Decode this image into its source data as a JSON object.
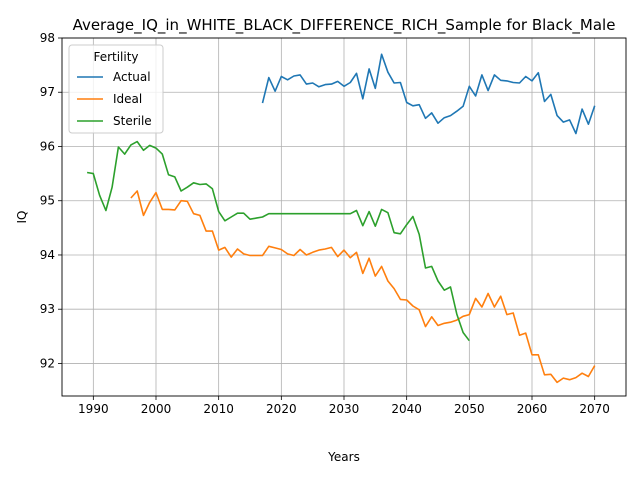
{
  "chart_data": {
    "type": "line",
    "title": "Average_IQ_in_WHITE_BLACK_DIFFERENCE_RICH_Sample for Black_Male",
    "xlabel": "Years",
    "ylabel": "IQ",
    "xlim": [
      1985,
      2075
    ],
    "ylim": [
      91.4,
      98.0
    ],
    "xticks": [
      1990,
      2000,
      2010,
      2020,
      2030,
      2040,
      2050,
      2060,
      2070
    ],
    "yticks": [
      92,
      93,
      94,
      95,
      96,
      97,
      98
    ],
    "grid": true,
    "legend": {
      "title": "Fertility",
      "placement": "upper-left"
    },
    "series": [
      {
        "name": "Actual",
        "color": "#1f77b4",
        "x": [
          2017,
          2018,
          2019,
          2020,
          2021,
          2022,
          2023,
          2024,
          2025,
          2026,
          2027,
          2028,
          2029,
          2030,
          2031,
          2032,
          2033,
          2034,
          2035,
          2036,
          2037,
          2038,
          2039,
          2040,
          2041,
          2042,
          2043,
          2044,
          2045,
          2046,
          2047,
          2048,
          2049,
          2050,
          2051,
          2052,
          2053,
          2054,
          2055,
          2056,
          2057,
          2058,
          2059,
          2060,
          2061,
          2062,
          2063,
          2064,
          2065,
          2066,
          2067,
          2068,
          2069,
          2070
        ],
        "y": [
          96.8,
          97.27,
          97.02,
          97.29,
          97.23,
          97.3,
          97.32,
          97.15,
          97.17,
          97.1,
          97.14,
          97.15,
          97.2,
          97.11,
          97.18,
          97.35,
          96.88,
          97.43,
          97.07,
          97.7,
          97.37,
          97.17,
          97.18,
          96.81,
          96.75,
          96.77,
          96.52,
          96.62,
          96.43,
          96.53,
          96.57,
          96.65,
          96.74,
          97.11,
          96.93,
          97.32,
          97.03,
          97.32,
          97.22,
          97.21,
          97.18,
          97.17,
          97.29,
          97.21,
          97.36,
          96.83,
          96.96,
          96.57,
          96.45,
          96.49,
          96.24,
          96.69,
          96.41,
          96.75
        ]
      },
      {
        "name": "Ideal",
        "color": "#ff7f0e",
        "x": [
          1996,
          1997,
          1998,
          1999,
          2000,
          2001,
          2002,
          2003,
          2004,
          2005,
          2006,
          2007,
          2008,
          2009,
          2010,
          2011,
          2012,
          2013,
          2014,
          2015,
          2016,
          2017,
          2018,
          2019,
          2020,
          2021,
          2022,
          2023,
          2024,
          2025,
          2026,
          2027,
          2028,
          2029,
          2030,
          2031,
          2032,
          2033,
          2034,
          2035,
          2036,
          2037,
          2038,
          2039,
          2040,
          2041,
          2042,
          2043,
          2044,
          2045,
          2046,
          2047,
          2048,
          2049,
          2050,
          2051,
          2052,
          2053,
          2054,
          2055,
          2056,
          2057,
          2058,
          2059,
          2060,
          2061,
          2062,
          2063,
          2064,
          2065,
          2066,
          2067,
          2068,
          2069,
          2070
        ],
        "y": [
          95.05,
          95.18,
          94.73,
          94.97,
          95.15,
          94.84,
          94.84,
          94.83,
          95.0,
          94.99,
          94.76,
          94.73,
          94.44,
          94.44,
          94.09,
          94.14,
          93.96,
          94.11,
          94.02,
          93.99,
          93.99,
          93.99,
          94.16,
          94.13,
          94.1,
          94.02,
          93.99,
          94.1,
          94.0,
          94.05,
          94.09,
          94.11,
          94.14,
          93.97,
          94.09,
          93.95,
          94.05,
          93.66,
          93.94,
          93.61,
          93.79,
          93.52,
          93.38,
          93.18,
          93.17,
          93.06,
          92.99,
          92.68,
          92.86,
          92.7,
          92.74,
          92.76,
          92.8,
          92.87,
          92.9,
          93.2,
          93.04,
          93.29,
          93.04,
          93.24,
          92.9,
          92.93,
          92.52,
          92.56,
          92.16,
          92.16,
          91.79,
          91.8,
          91.65,
          91.73,
          91.7,
          91.74,
          91.82,
          91.76,
          91.96
        ]
      },
      {
        "name": "Sterile",
        "color": "#2ca02c",
        "x": [
          1989,
          1990,
          1991,
          1992,
          1993,
          1994,
          1995,
          1996,
          1997,
          1998,
          1999,
          2000,
          2001,
          2002,
          2003,
          2004,
          2005,
          2006,
          2007,
          2008,
          2009,
          2010,
          2011,
          2012,
          2013,
          2014,
          2015,
          2016,
          2017,
          2018,
          2019,
          2020,
          2021,
          2022,
          2023,
          2024,
          2025,
          2026,
          2027,
          2028,
          2029,
          2030,
          2031,
          2032,
          2033,
          2034,
          2035,
          2036,
          2037,
          2038,
          2039,
          2040,
          2041,
          2042,
          2043,
          2044,
          2045,
          2046,
          2047,
          2048,
          2049,
          2050
        ],
        "y": [
          95.52,
          95.5,
          95.1,
          94.82,
          95.25,
          95.99,
          95.86,
          96.03,
          96.09,
          95.93,
          96.02,
          95.97,
          95.86,
          95.48,
          95.44,
          95.18,
          95.25,
          95.33,
          95.3,
          95.31,
          95.22,
          94.8,
          94.63,
          94.7,
          94.77,
          94.77,
          94.66,
          94.68,
          94.7,
          94.76,
          94.76,
          94.76,
          94.76,
          94.76,
          94.76,
          94.76,
          94.76,
          94.76,
          94.76,
          94.76,
          94.76,
          94.76,
          94.76,
          94.82,
          94.54,
          94.8,
          94.53,
          94.84,
          94.78,
          94.41,
          94.39,
          94.56,
          94.71,
          94.38,
          93.76,
          93.79,
          93.52,
          93.35,
          93.41,
          92.91,
          92.57,
          92.42
        ]
      }
    ]
  }
}
